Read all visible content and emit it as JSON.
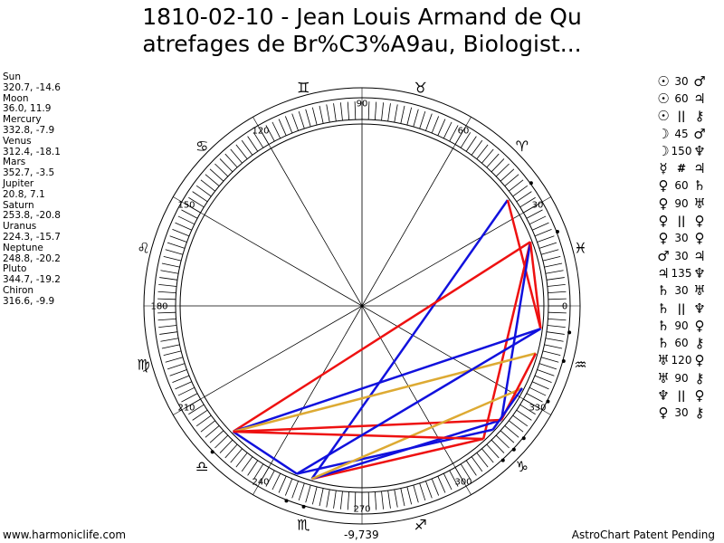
{
  "title_line1": "1810-02-10 - Jean Louis Armand de Qu",
  "title_line2": "atrefages de Br%C3%A9au, Biologist...",
  "positions": [
    {
      "name": "Sun",
      "value": "320.7, -14.6"
    },
    {
      "name": "Moon",
      "value": "36.0, 11.9"
    },
    {
      "name": "Mercury",
      "value": "332.8, -7.9"
    },
    {
      "name": "Venus",
      "value": "312.4, -18.1"
    },
    {
      "name": "Mars",
      "value": "352.7, -3.5"
    },
    {
      "name": "Jupiter",
      "value": "20.8, 7.1"
    },
    {
      "name": "Saturn",
      "value": "253.8, -20.8"
    },
    {
      "name": "Uranus",
      "value": "224.3, -15.7"
    },
    {
      "name": "Neptune",
      "value": "248.8, -20.2"
    },
    {
      "name": "Pluto",
      "value": "344.7, -19.2"
    },
    {
      "name": "Chiron",
      "value": "316.6, -9.9"
    }
  ],
  "aspects": [
    {
      "p1": "☉",
      "n": "30",
      "p2": "♂"
    },
    {
      "p1": "☉",
      "n": "60",
      "p2": "♃"
    },
    {
      "p1": "☉",
      "n": "||",
      "p2": "⚷"
    },
    {
      "p1": "☽",
      "n": "45",
      "p2": "♂"
    },
    {
      "p1": "☽",
      "n": "150",
      "p2": "♆"
    },
    {
      "p1": "☿",
      "n": "#",
      "p2": "♃"
    },
    {
      "p1": "♀",
      "n": "60",
      "p2": "♄"
    },
    {
      "p1": "♀",
      "n": "90",
      "p2": "♅"
    },
    {
      "p1": "♀",
      "n": "||",
      "p2": "♀"
    },
    {
      "p1": "♀",
      "n": "30",
      "p2": "♀"
    },
    {
      "p1": "♂",
      "n": "30",
      "p2": "♃"
    },
    {
      "p1": "♃",
      "n": "135",
      "p2": "♆"
    },
    {
      "p1": "♄",
      "n": "30",
      "p2": "♅"
    },
    {
      "p1": "♄",
      "n": "||",
      "p2": "♆"
    },
    {
      "p1": "♄",
      "n": "90",
      "p2": "♀"
    },
    {
      "p1": "♄",
      "n": "60",
      "p2": "⚷"
    },
    {
      "p1": "♅",
      "n": "120",
      "p2": "♀"
    },
    {
      "p1": "♅",
      "n": "90",
      "p2": "⚷"
    },
    {
      "p1": "♆",
      "n": "||",
      "p2": "♀"
    },
    {
      "p1": "♀",
      "n": "30",
      "p2": "⚷"
    }
  ],
  "degree_labels": [
    "0",
    "30",
    "60",
    "90",
    "120",
    "150",
    "180",
    "210",
    "240",
    "270",
    "300",
    "330"
  ],
  "zodiac_signs": [
    "♓",
    "♈",
    "♉",
    "♊",
    "♋",
    "♌",
    "♍",
    "♎",
    "♏",
    "♐",
    "♑",
    "♒"
  ],
  "planet_glyphs": {
    "sun": "☉",
    "moon": "☽",
    "mercury": "☿",
    "venus": "♀",
    "mars": "♂",
    "jupiter": "♃",
    "saturn": "♄",
    "uranus": "♅",
    "neptune": "♆",
    "pluto": "♀",
    "chiron": "⚷"
  },
  "bottom_value": "-9,739",
  "footer_left": "www.harmoniclife.com",
  "footer_right": "AstroChart Patent Pending",
  "colors": {
    "square": "#ee1111",
    "trine": "#1111dd",
    "opposition": "#ddaa33",
    "ring": "#000000"
  }
}
